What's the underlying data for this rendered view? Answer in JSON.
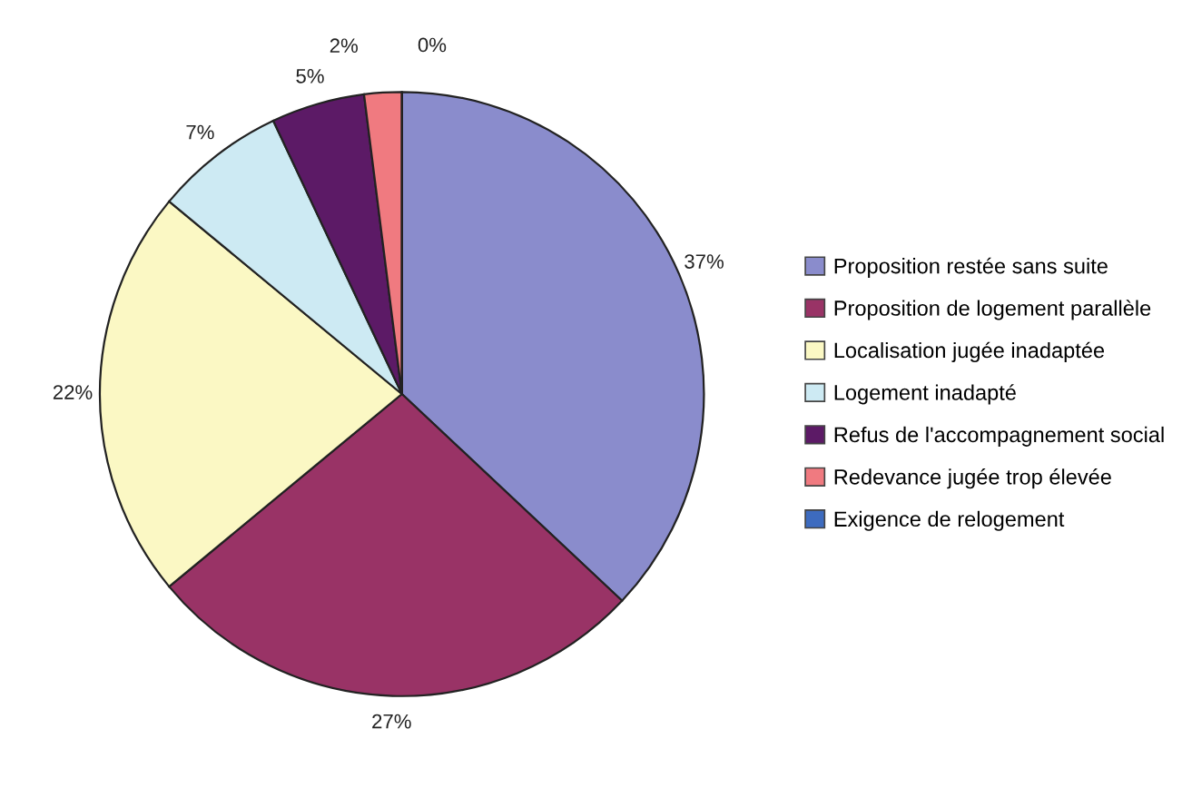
{
  "chart_data": {
    "type": "pie",
    "categories": [
      "Proposition restée sans suite",
      "Proposition de logement parallèle",
      "Localisation jugée inadaptée",
      "Logement inadapté",
      "Refus de l'accompagnement social",
      "Redevance jugée trop élevée",
      "Exigence de relogement"
    ],
    "values": [
      37,
      27,
      22,
      7,
      5,
      2,
      0
    ],
    "value_labels": [
      "37%",
      "27%",
      "22%",
      "7%",
      "5%",
      "2%",
      "0%"
    ],
    "colors": [
      "#8a8ccc",
      "#993366",
      "#fbf8c4",
      "#cdeaf3",
      "#5c1a66",
      "#f07a80",
      "#3d6bbf"
    ],
    "legend": "right"
  }
}
